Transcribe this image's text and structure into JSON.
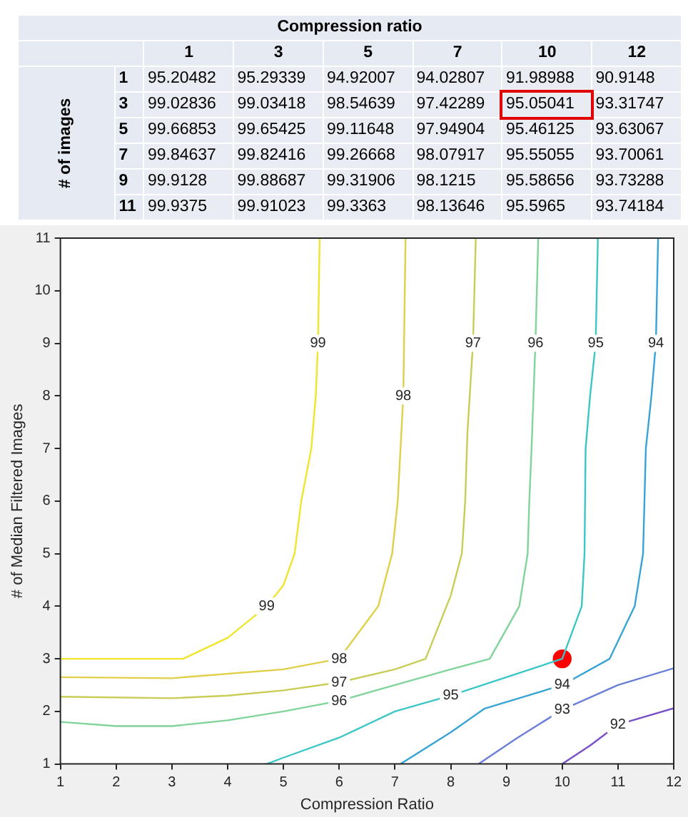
{
  "chart_data": [
    {
      "type": "heatmap",
      "xlabel": "Compression ratio",
      "ylabel": "# of images",
      "categories": [
        "1",
        "3",
        "5",
        "7",
        "10",
        "12"
      ],
      "y_categories": [
        "1",
        "3",
        "5",
        "7",
        "9",
        "11"
      ],
      "data_labels": true,
      "cells": [
        [
          95.20482,
          95.29339,
          94.92007,
          94.02807,
          91.98988,
          90.9148
        ],
        [
          99.02836,
          99.03418,
          98.54639,
          97.42289,
          95.05041,
          93.31747
        ],
        [
          99.66853,
          99.65425,
          99.11648,
          97.94904,
          95.46125,
          93.63067
        ],
        [
          99.84637,
          99.82416,
          99.26668,
          98.07917,
          95.55055,
          93.70061
        ],
        [
          99.9128,
          99.88687,
          99.31906,
          98.1215,
          95.58656,
          93.73288
        ],
        [
          99.9375,
          99.91023,
          99.3363,
          98.13646,
          95.5965,
          93.74184
        ]
      ]
    },
    {
      "type": "line",
      "xlabel": "Compression Ratio",
      "ylabel": "# of Median Filtered Images",
      "xlim": [
        1,
        12
      ],
      "xticks": [
        1,
        2,
        3,
        4,
        5,
        6,
        7,
        8,
        9,
        10,
        11,
        12
      ],
      "ylim": [
        1,
        11
      ],
      "yticks": [
        1,
        2,
        3,
        4,
        5,
        6,
        7,
        8,
        9,
        10,
        11
      ],
      "grid": false,
      "legend": false,
      "marker": "none",
      "series": [
        {
          "name": "99",
          "color": "#f0e52c",
          "x": [
            1,
            3.2,
            4,
            4.7,
            5,
            5.2,
            5.32,
            5.5,
            5.58,
            5.62,
            5.65
          ],
          "values": [
            3,
            3,
            3.4,
            4,
            4.4,
            5,
            6,
            7,
            8,
            9,
            11
          ]
        },
        {
          "name": "98",
          "color": "#e0cf48",
          "x": [
            1,
            3,
            5,
            6,
            6.7,
            6.95,
            7.05,
            7.15,
            7.19
          ],
          "values": [
            2.65,
            2.63,
            2.8,
            3,
            4,
            5,
            6,
            8,
            11
          ]
        },
        {
          "name": "97",
          "color": "#c9cc55",
          "x": [
            1,
            3,
            4,
            5,
            6,
            7,
            7.55,
            8,
            8.2,
            8.26,
            8.3,
            8.4,
            8.45
          ],
          "values": [
            2.28,
            2.25,
            2.3,
            2.4,
            2.55,
            2.8,
            3,
            4.2,
            5,
            6,
            7.3,
            9,
            11
          ]
        },
        {
          "name": "96",
          "color": "#80d49a",
          "x": [
            1,
            2,
            3,
            4,
            5,
            6,
            7,
            8,
            8.7,
            9.23,
            9.38,
            9.41,
            9.45,
            9.52,
            9.57
          ],
          "values": [
            1.8,
            1.72,
            1.72,
            1.83,
            2,
            2.2,
            2.5,
            2.8,
            3,
            4,
            5,
            6,
            7,
            9,
            11
          ]
        },
        {
          "name": "95",
          "color": "#3cc6c6",
          "x": [
            4.7,
            5,
            6,
            7,
            8,
            9,
            10,
            10.35,
            10.4,
            10.42,
            10.5,
            10.6,
            10.64
          ],
          "values": [
            1,
            1.12,
            1.5,
            2,
            2.3,
            2.65,
            3,
            4,
            5,
            7,
            8,
            9,
            11
          ]
        },
        {
          "name": "94",
          "color": "#38a4d6",
          "x": [
            7.1,
            8,
            8.6,
            10,
            10.85,
            11.3,
            11.45,
            11.5,
            11.6,
            11.68,
            11.72
          ],
          "values": [
            1,
            1.6,
            2.05,
            2.5,
            3,
            4,
            5,
            7,
            8,
            9,
            11
          ]
        },
        {
          "name": "93",
          "color": "#6a80d8",
          "x": [
            8.5,
            9.2,
            10,
            11,
            12
          ],
          "values": [
            1,
            1.5,
            2.03,
            2.5,
            2.82
          ]
        },
        {
          "name": "92",
          "color": "#7a50c8",
          "x": [
            10,
            10.5,
            11,
            12
          ],
          "values": [
            1,
            1.35,
            1.75,
            2.06
          ]
        },
        {
          "type": "scatter",
          "marker": "circle",
          "color": "#ff0000",
          "x": [
            10
          ],
          "values": [
            3
          ]
        }
      ]
    }
  ]
}
